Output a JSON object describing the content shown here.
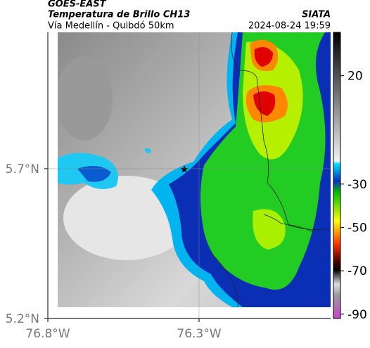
{
  "header": {
    "source": "GOES-EAST",
    "title": "Temperatura de Brillo CH13",
    "org": "SIATA",
    "subtitle": "Vía Medellín - Quibdó 50km",
    "datetime": "2024-08-24 19:59"
  },
  "map": {
    "latlim": [
      5.2,
      6.155
    ],
    "lonlim": [
      -76.8,
      -75.865
    ],
    "lat_ticks": [
      {
        "value": 5.7,
        "label": "5.7°N"
      },
      {
        "value": 5.2,
        "label": "5.2°N"
      }
    ],
    "lon_ticks": [
      {
        "value": -76.8,
        "label": "76.8°W"
      },
      {
        "value": -76.3,
        "label": "76.3°W"
      }
    ]
  },
  "colorbar": {
    "lim": [
      -92,
      40
    ],
    "ticks": [
      20,
      -30,
      -50,
      -70,
      -90
    ]
  }
}
